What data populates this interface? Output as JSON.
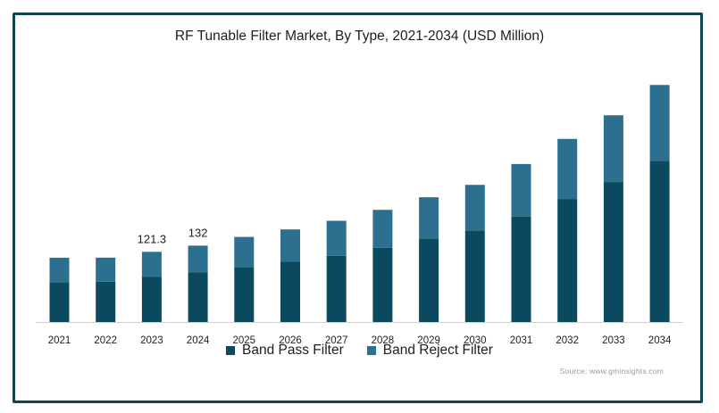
{
  "chart_data": {
    "type": "bar",
    "stacked": true,
    "title": "RF Tunable Filter Market, By Type, 2021-2034 (USD Million)",
    "xlabel": "",
    "ylabel": "",
    "categories": [
      "2021",
      "2022",
      "2023",
      "2024",
      "2025",
      "2026",
      "2027",
      "2028",
      "2029",
      "2030",
      "2031",
      "2032",
      "2033",
      "2034"
    ],
    "series": [
      {
        "name": "Band Pass Filter",
        "color": "#0b4a5e",
        "values": [
          69,
          69.8,
          77.9,
          85.5,
          95,
          104,
          114.3,
          128.2,
          143.3,
          158.3,
          182.4,
          212.6,
          241.9,
          278.7
        ]
      },
      {
        "name": "Band Reject Filter",
        "color": "#2d6f8e",
        "values": [
          42.1,
          41.4,
          43.4,
          46.5,
          52,
          56,
          60.6,
          65.6,
          72.3,
          78.7,
          90.6,
          103.8,
          115.3,
          130.9
        ]
      }
    ],
    "data_labels": {
      "2023": "121.3",
      "2024": "132"
    },
    "ylim": [
      0,
      410
    ],
    "grid": false,
    "legend_position": "bottom"
  },
  "source_text": "Source: www.gminsights.com"
}
